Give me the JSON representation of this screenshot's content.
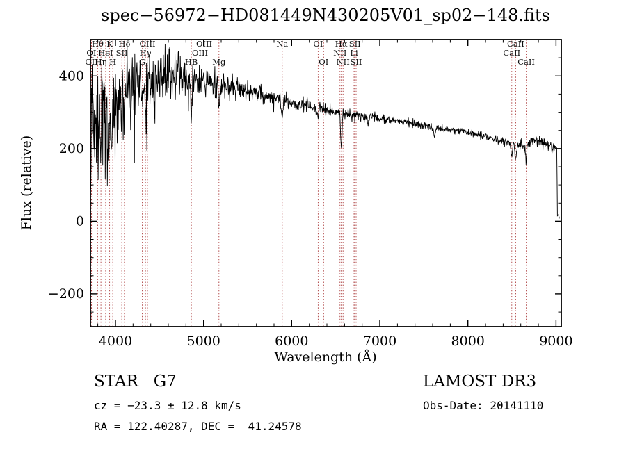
{
  "chart_data": {
    "type": "line",
    "title": "spec−56972−HD081449N430205V01_sp02−148.fits",
    "xlabel": "Wavelength (Å)",
    "ylabel": "Flux (relative)",
    "xlim": [
      3716,
      9060
    ],
    "ylim": [
      -290,
      500
    ],
    "x_ticks": [
      4000,
      5000,
      6000,
      7000,
      8000,
      9000
    ],
    "y_ticks": [
      -200,
      0,
      200,
      400
    ],
    "x_minor_step": 200,
    "y_minor_step": 50,
    "grid": false,
    "legend": "none",
    "line_color": "#000000",
    "marker_color": "#aa3939",
    "spectral_lines": [
      {
        "label": "OI",
        "wavelength": 3727,
        "row": 2
      },
      {
        "label": "OII",
        "wavelength": 3729,
        "row": 3
      },
      {
        "label": "Hθ",
        "wavelength": 3798,
        "row": 1
      },
      {
        "label": "Hη",
        "wavelength": 3835,
        "row": 3
      },
      {
        "label": "HeI",
        "wavelength": 3889,
        "row": 2
      },
      {
        "label": "K",
        "wavelength": 3934,
        "row": 1
      },
      {
        "label": "H",
        "wavelength": 3969,
        "row": 3
      },
      {
        "label": "SII",
        "wavelength": 4072,
        "row": 2
      },
      {
        "label": "Hδ",
        "wavelength": 4102,
        "row": 1
      },
      {
        "label": "G",
        "wavelength": 4305,
        "row": 3
      },
      {
        "label": "Hγ",
        "wavelength": 4340,
        "row": 2
      },
      {
        "label": "OIII",
        "wavelength": 4363,
        "row": 1
      },
      {
        "label": "HB",
        "wavelength": 4861,
        "row": 3
      },
      {
        "label": "OIII",
        "wavelength": 4959,
        "row": 2
      },
      {
        "label": "OIII",
        "wavelength": 5007,
        "row": 1
      },
      {
        "label": "Mg",
        "wavelength": 5175,
        "row": 3
      },
      {
        "label": "Na",
        "wavelength": 5893,
        "row": 1
      },
      {
        "label": "OI",
        "wavelength": 6300,
        "row": 1
      },
      {
        "label": "OI",
        "wavelength": 6363,
        "row": 3
      },
      {
        "label": "NII",
        "wavelength": 6548,
        "row": 2
      },
      {
        "label": "Hα",
        "wavelength": 6563,
        "row": 1
      },
      {
        "label": "NII",
        "wavelength": 6583,
        "row": 3
      },
      {
        "label": "Li",
        "wavelength": 6708,
        "row": 2
      },
      {
        "label": "SII",
        "wavelength": 6717,
        "row": 1
      },
      {
        "label": "SII",
        "wavelength": 6731,
        "row": 3
      },
      {
        "label": "CaII",
        "wavelength": 8498,
        "row": 2
      },
      {
        "label": "CaII",
        "wavelength": 8542,
        "row": 1
      },
      {
        "label": "CaII",
        "wavelength": 8662,
        "row": 3
      }
    ],
    "spectrum": {
      "seed": 20141110,
      "start": 3716,
      "end": 9008,
      "step": 4,
      "continuum": [
        [
          3716,
          250
        ],
        [
          3750,
          270
        ],
        [
          3850,
          300
        ],
        [
          3950,
          320
        ],
        [
          4050,
          340
        ],
        [
          4150,
          360
        ],
        [
          4250,
          380
        ],
        [
          4350,
          390
        ],
        [
          4500,
          400
        ],
        [
          4700,
          405
        ],
        [
          4900,
          395
        ],
        [
          5100,
          380
        ],
        [
          5300,
          370
        ],
        [
          5500,
          358
        ],
        [
          5700,
          345
        ],
        [
          5900,
          335
        ],
        [
          6100,
          320
        ],
        [
          6300,
          310
        ],
        [
          6500,
          300
        ],
        [
          6700,
          292
        ],
        [
          7000,
          283
        ],
        [
          7300,
          272
        ],
        [
          7600,
          258
        ],
        [
          7900,
          248
        ],
        [
          8200,
          235
        ],
        [
          8400,
          222
        ],
        [
          8550,
          210
        ],
        [
          8650,
          207
        ],
        [
          8750,
          225
        ],
        [
          8850,
          215
        ],
        [
          8950,
          205
        ],
        [
          9008,
          200
        ]
      ],
      "noise": [
        [
          3716,
          160
        ],
        [
          3800,
          140
        ],
        [
          3900,
          120
        ],
        [
          4000,
          100
        ],
        [
          4150,
          85
        ],
        [
          4300,
          75
        ],
        [
          4500,
          60
        ],
        [
          4700,
          50
        ],
        [
          4900,
          42
        ],
        [
          5100,
          33
        ],
        [
          5300,
          27
        ],
        [
          5600,
          21
        ],
        [
          5900,
          18
        ],
        [
          6200,
          15
        ],
        [
          6600,
          12
        ],
        [
          7000,
          10
        ],
        [
          7500,
          9
        ],
        [
          8000,
          9
        ],
        [
          8500,
          10
        ],
        [
          9008,
          12
        ]
      ],
      "dips": [
        {
          "center": 3934,
          "depth": 120,
          "width": 9
        },
        {
          "center": 3969,
          "depth": 110,
          "width": 9
        },
        {
          "center": 4102,
          "depth": 95,
          "width": 8
        },
        {
          "center": 4305,
          "depth": 45,
          "width": 10
        },
        {
          "center": 4340,
          "depth": 85,
          "width": 8
        },
        {
          "center": 4861,
          "depth": 115,
          "width": 8
        },
        {
          "center": 5175,
          "depth": 40,
          "width": 12
        },
        {
          "center": 5893,
          "depth": 55,
          "width": 8
        },
        {
          "center": 6300,
          "depth": 25,
          "width": 6
        },
        {
          "center": 6563,
          "depth": 95,
          "width": 8
        },
        {
          "center": 6867,
          "depth": 20,
          "width": 8
        },
        {
          "center": 7620,
          "depth": 25,
          "width": 9
        },
        {
          "center": 8498,
          "depth": 35,
          "width": 7
        },
        {
          "center": 8542,
          "depth": 45,
          "width": 7
        },
        {
          "center": 8662,
          "depth": 40,
          "width": 7
        }
      ],
      "tail": [
        [
          9012,
          120
        ],
        [
          9016,
          15
        ],
        [
          9028,
          18
        ],
        [
          9040,
          8
        ]
      ]
    }
  },
  "annotations": {
    "class_label": "STAR   G7",
    "survey": "LAMOST DR3",
    "cz": "cz = −23.3 ± 12.8 km/s",
    "obs_date": "Obs-Date: 20141110",
    "ra_dec": "RA = 122.40287, DEC =  41.24578"
  }
}
